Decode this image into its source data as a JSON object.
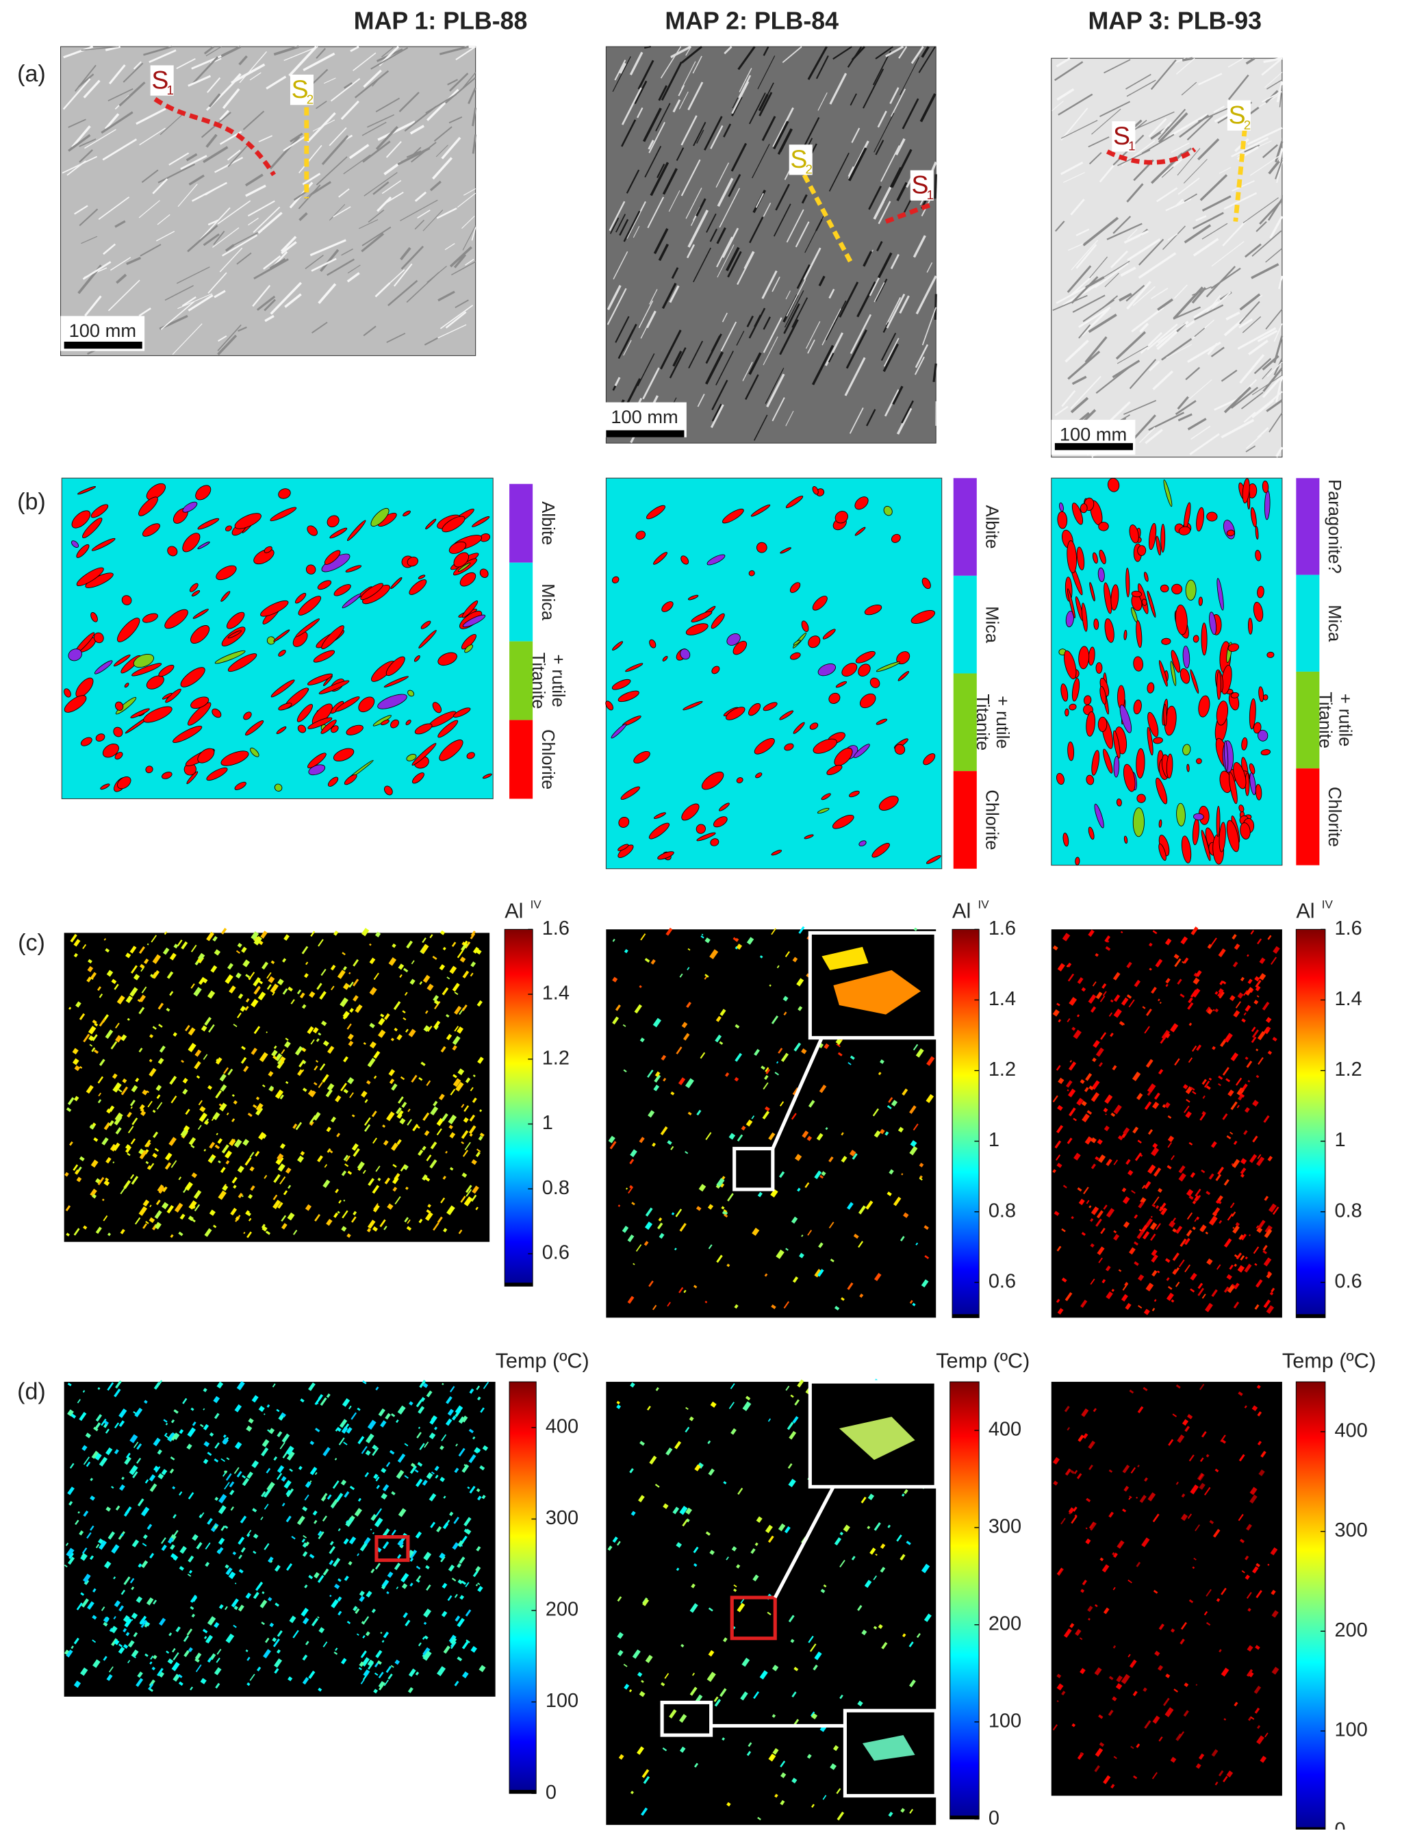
{
  "columns": [
    {
      "title": "MAP 1: PLB-88"
    },
    {
      "title": "MAP 2: PLB-84"
    },
    {
      "title": "MAP 3: PLB-93"
    }
  ],
  "rows": [
    {
      "label": "(a)"
    },
    {
      "label": "(b)"
    },
    {
      "label": "(c)"
    },
    {
      "label": "(d)"
    }
  ],
  "scale_bar": "100 mm",
  "foliations": [
    {
      "letter": "S",
      "subscript": "1"
    },
    {
      "letter": "S",
      "subscript": "2"
    }
  ],
  "legends": [
    {
      "items": [
        {
          "lines": [
            "Albite"
          ],
          "color": "#8a2be2"
        },
        {
          "lines": [
            "Mica"
          ],
          "color": "#00e5e5"
        },
        {
          "lines": [
            "Titanite",
            "+ rutile"
          ],
          "color": "#7fd01a"
        },
        {
          "lines": [
            "Chlorite"
          ],
          "color": "#ff0000"
        }
      ]
    },
    {
      "items": [
        {
          "lines": [
            "Albite"
          ],
          "color": "#8a2be2"
        },
        {
          "lines": [
            "Mica"
          ],
          "color": "#00e5e5"
        },
        {
          "lines": [
            "Titanite",
            "+ rutile"
          ],
          "color": "#7fd01a"
        },
        {
          "lines": [
            "Chlorite"
          ],
          "color": "#ff0000"
        }
      ]
    },
    {
      "items": [
        {
          "lines": [
            "Paragonite?"
          ],
          "color": "#8a2be2"
        },
        {
          "lines": [
            "Mica"
          ],
          "color": "#00e5e5"
        },
        {
          "lines": [
            "Titanite",
            "+ rutile"
          ],
          "color": "#7fd01a"
        },
        {
          "lines": [
            "Chlorite"
          ],
          "color": "#ff0000"
        }
      ]
    }
  ],
  "colorbars": {
    "al": {
      "title": "Al",
      "superscript": "IV",
      "clim": [
        0.5,
        1.6
      ],
      "ticks": [
        0.6,
        0.8,
        1,
        1.2,
        1.4,
        1.6
      ]
    },
    "temp": {
      "title": "Temp (ºC)",
      "clim": [
        0,
        450
      ],
      "ticks": [
        0,
        100,
        200,
        300,
        400
      ]
    }
  }
}
